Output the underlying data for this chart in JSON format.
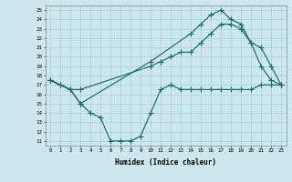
{
  "xlabel": "Humidex (Indice chaleur)",
  "xlim": [
    -0.5,
    23.5
  ],
  "ylim": [
    10.5,
    25.5
  ],
  "xticks": [
    0,
    1,
    2,
    3,
    4,
    5,
    6,
    7,
    8,
    9,
    10,
    11,
    12,
    13,
    14,
    15,
    16,
    17,
    18,
    19,
    20,
    21,
    22,
    23
  ],
  "yticks": [
    11,
    12,
    13,
    14,
    15,
    16,
    17,
    18,
    19,
    20,
    21,
    22,
    23,
    24,
    25
  ],
  "bg_color": "#cce8ec",
  "line_color": "#1a6b6b",
  "line1_x": [
    0,
    1,
    2,
    3,
    10,
    11,
    12,
    13,
    14,
    15,
    16,
    17,
    18,
    19,
    20,
    21,
    22,
    23
  ],
  "line1_y": [
    17.5,
    17,
    16.5,
    16.5,
    19,
    19.5,
    20,
    20.5,
    20.5,
    21.5,
    22.5,
    23.5,
    23.5,
    23,
    21.5,
    21,
    19,
    17
  ],
  "line2_x": [
    0,
    1,
    2,
    3,
    4,
    5,
    6,
    7,
    8,
    9,
    10,
    11,
    12,
    13,
    14,
    15,
    16,
    17,
    18,
    19,
    20,
    21,
    22,
    23
  ],
  "line2_y": [
    17.5,
    17,
    16.5,
    15,
    14,
    13.5,
    11,
    11,
    11,
    11.5,
    14,
    16.5,
    17,
    16.5,
    16.5,
    16.5,
    16.5,
    16.5,
    16.5,
    16.5,
    16.5,
    17,
    17,
    17
  ],
  "line3_x": [
    0,
    2,
    3,
    10,
    14,
    15,
    16,
    17,
    18,
    19,
    20,
    21,
    22,
    23
  ],
  "line3_y": [
    17.5,
    16.5,
    15,
    19.5,
    22.5,
    23.5,
    24.5,
    25,
    24,
    23.5,
    21.5,
    19,
    17.5,
    17
  ]
}
